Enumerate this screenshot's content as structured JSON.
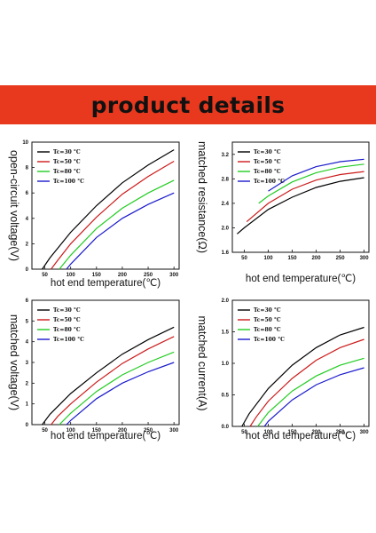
{
  "page": {
    "banner_title": "product details",
    "banner_color": "#e8391e"
  },
  "chart_data": [
    {
      "type": "line",
      "xlabel": "hot end temperature(℃)",
      "ylabel": "open-circuit voltage(V)",
      "xlim": [
        25,
        310
      ],
      "ylim": [
        0,
        10
      ],
      "xticks": [
        50,
        100,
        150,
        200,
        250,
        300
      ],
      "yticks": [
        0,
        2,
        4,
        6,
        8,
        10
      ],
      "legend_position": "top-left",
      "series": [
        {
          "name": "Tc=30 °C",
          "color": "#000000",
          "x": [
            45,
            60,
            100,
            150,
            200,
            250,
            300
          ],
          "y": [
            0.0,
            0.9,
            2.9,
            5.0,
            6.8,
            8.2,
            9.4
          ]
        },
        {
          "name": "Tc=50 °C",
          "color": "#cc1a1a",
          "x": [
            62,
            75,
            100,
            150,
            200,
            250,
            300
          ],
          "y": [
            0.0,
            0.7,
            2.0,
            4.1,
            5.9,
            7.3,
            8.5
          ]
        },
        {
          "name": "Tc=80 °C",
          "color": "#22cc22",
          "x": [
            78,
            100,
            150,
            200,
            250,
            300
          ],
          "y": [
            0.0,
            1.1,
            3.2,
            4.8,
            6.0,
            7.0
          ]
        },
        {
          "name": "Tc=100 °C",
          "color": "#1a1acc",
          "x": [
            92,
            100,
            150,
            200,
            250,
            300
          ],
          "y": [
            0.0,
            0.4,
            2.5,
            4.0,
            5.1,
            6.0
          ]
        }
      ]
    },
    {
      "type": "line",
      "xlabel": "hot end temperature(℃)",
      "ylabel": "matched resistance(Ω)",
      "xlim": [
        25,
        310
      ],
      "ylim": [
        1.6,
        3.4
      ],
      "xticks": [
        50,
        100,
        150,
        200,
        250,
        300
      ],
      "yticks": [
        1.6,
        2.0,
        2.4,
        2.8,
        3.2
      ],
      "legend_position": "top-left",
      "series": [
        {
          "name": "Tc=30 °C",
          "color": "#000000",
          "x": [
            35,
            50,
            100,
            150,
            200,
            250,
            300
          ],
          "y": [
            1.9,
            2.0,
            2.3,
            2.5,
            2.66,
            2.76,
            2.82
          ]
        },
        {
          "name": "Tc=50 °C",
          "color": "#cc1a1a",
          "x": [
            55,
            100,
            150,
            200,
            250,
            300
          ],
          "y": [
            2.1,
            2.4,
            2.63,
            2.78,
            2.87,
            2.92
          ]
        },
        {
          "name": "Tc=80 °C",
          "color": "#22cc22",
          "x": [
            80,
            100,
            150,
            200,
            250,
            300
          ],
          "y": [
            2.4,
            2.52,
            2.75,
            2.9,
            2.99,
            3.04
          ]
        },
        {
          "name": "Tc=100 °C",
          "color": "#1a1acc",
          "x": [
            100,
            150,
            200,
            250,
            300
          ],
          "y": [
            2.6,
            2.85,
            3.0,
            3.08,
            3.12
          ]
        }
      ]
    },
    {
      "type": "line",
      "xlabel": "hot end temperature(℃)",
      "ylabel": "matched voltage(V)",
      "xlim": [
        25,
        310
      ],
      "ylim": [
        0,
        6
      ],
      "xticks": [
        50,
        100,
        150,
        200,
        250,
        300
      ],
      "yticks": [
        0,
        1,
        2,
        3,
        4,
        5,
        6
      ],
      "legend_position": "top-left",
      "series": [
        {
          "name": "Tc=30 °C",
          "color": "#000000",
          "x": [
            45,
            60,
            100,
            150,
            200,
            250,
            300
          ],
          "y": [
            0.0,
            0.5,
            1.5,
            2.5,
            3.4,
            4.1,
            4.7
          ]
        },
        {
          "name": "Tc=50 °C",
          "color": "#cc1a1a",
          "x": [
            62,
            75,
            100,
            150,
            200,
            250,
            300
          ],
          "y": [
            0.0,
            0.4,
            1.0,
            2.05,
            2.95,
            3.65,
            4.25
          ]
        },
        {
          "name": "Tc=80 °C",
          "color": "#22cc22",
          "x": [
            78,
            100,
            150,
            200,
            250,
            300
          ],
          "y": [
            0.0,
            0.55,
            1.6,
            2.4,
            3.0,
            3.5
          ]
        },
        {
          "name": "Tc=100 °C",
          "color": "#1a1acc",
          "x": [
            92,
            100,
            150,
            200,
            250,
            300
          ],
          "y": [
            0.0,
            0.2,
            1.25,
            2.0,
            2.55,
            3.0
          ]
        }
      ]
    },
    {
      "type": "line",
      "xlabel": "hot end temperature(℃)",
      "ylabel": "matched current(A)",
      "xlim": [
        25,
        310
      ],
      "ylim": [
        0,
        2.0
      ],
      "xticks": [
        50,
        100,
        150,
        200,
        250,
        300
      ],
      "yticks": [
        0.0,
        0.5,
        1.0,
        1.5,
        2.0
      ],
      "legend_position": "top-left",
      "series": [
        {
          "name": "Tc=30 °C",
          "color": "#000000",
          "x": [
            45,
            60,
            100,
            150,
            200,
            250,
            300
          ],
          "y": [
            0.0,
            0.2,
            0.6,
            0.97,
            1.25,
            1.45,
            1.57
          ]
        },
        {
          "name": "Tc=50 °C",
          "color": "#cc1a1a",
          "x": [
            62,
            75,
            100,
            150,
            200,
            250,
            300
          ],
          "y": [
            0.0,
            0.15,
            0.4,
            0.76,
            1.05,
            1.25,
            1.38
          ]
        },
        {
          "name": "Tc=80 °C",
          "color": "#22cc22",
          "x": [
            78,
            100,
            150,
            200,
            250,
            300
          ],
          "y": [
            0.0,
            0.22,
            0.56,
            0.8,
            0.97,
            1.08
          ]
        },
        {
          "name": "Tc=100 °C",
          "color": "#1a1acc",
          "x": [
            92,
            100,
            150,
            200,
            250,
            300
          ],
          "y": [
            0.0,
            0.08,
            0.42,
            0.66,
            0.82,
            0.93
          ]
        }
      ]
    }
  ]
}
